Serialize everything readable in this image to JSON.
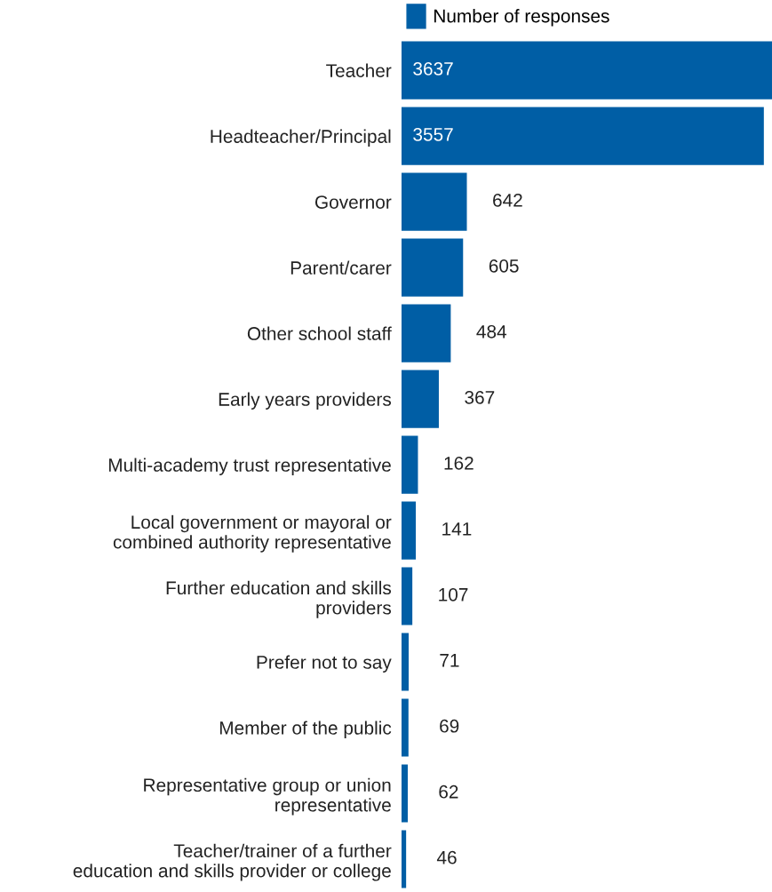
{
  "chart_data": {
    "type": "bar",
    "orientation": "horizontal",
    "data_labels": true,
    "legend": "top",
    "grid": false,
    "categories": [
      "Teacher",
      "Headteacher/Principal",
      "Governor",
      "Parent/carer",
      "Other school staff",
      "Early years providers",
      "Multi-academy trust representative",
      "Local government or mayoral or\ncombined authority representative",
      "Further education and skills\nproviders",
      "Prefer not to say",
      "Member of the public",
      "Representative group or union\nrepresentative",
      "Teacher/trainer of a further\neducation and skills provider or college"
    ],
    "series": [
      {
        "name": "Number of responses",
        "color": "#005ea5",
        "values": [
          3637,
          3557,
          642,
          605,
          484,
          367,
          162,
          141,
          107,
          71,
          69,
          62,
          46
        ]
      }
    ]
  }
}
